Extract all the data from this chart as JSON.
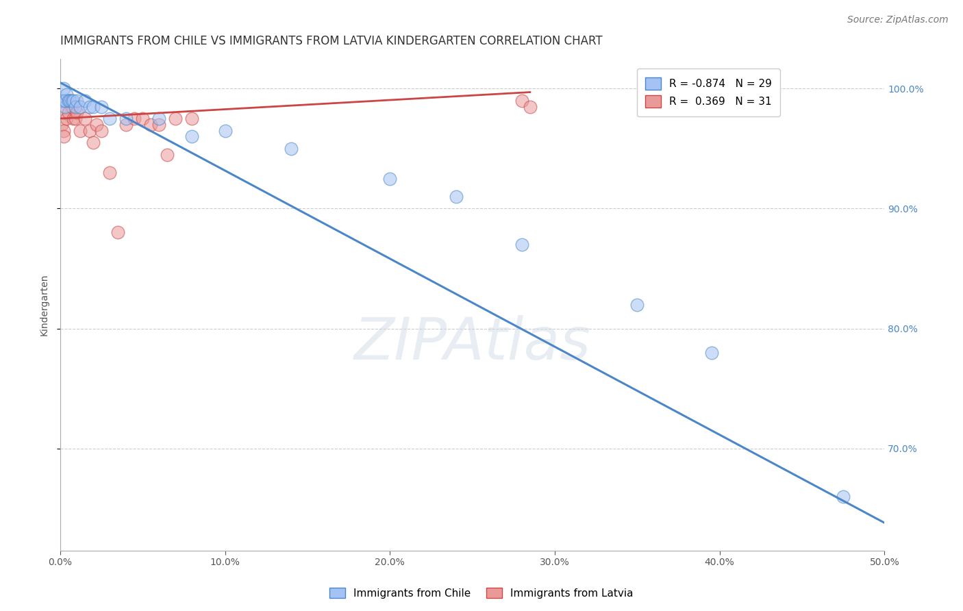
{
  "title": "IMMIGRANTS FROM CHILE VS IMMIGRANTS FROM LATVIA KINDERGARTEN CORRELATION CHART",
  "source": "Source: ZipAtlas.com",
  "ylabel": "Kindergarten",
  "xlim": [
    0.0,
    0.5
  ],
  "ylim": [
    0.615,
    1.025
  ],
  "xticks": [
    0.0,
    0.1,
    0.2,
    0.3,
    0.4,
    0.5
  ],
  "xticklabels": [
    "0.0%",
    "10.0%",
    "20.0%",
    "30.0%",
    "40.0%",
    "50.0%"
  ],
  "yticks": [
    0.7,
    0.8,
    0.9,
    1.0
  ],
  "yticklabels": [
    "70.0%",
    "80.0%",
    "90.0%",
    "100.0%"
  ],
  "grid_color": "#cccccc",
  "background_color": "#ffffff",
  "chile_color": "#a4c2f4",
  "chile_edge_color": "#4a86c8",
  "latvia_color": "#ea9999",
  "latvia_edge_color": "#cc4444",
  "chile_R": -0.874,
  "chile_N": 29,
  "latvia_R": 0.369,
  "latvia_N": 31,
  "chile_points_x": [
    0.001,
    0.002,
    0.002,
    0.003,
    0.003,
    0.004,
    0.005,
    0.006,
    0.007,
    0.008,
    0.009,
    0.01,
    0.012,
    0.015,
    0.018,
    0.02,
    0.025,
    0.03,
    0.04,
    0.06,
    0.08,
    0.1,
    0.14,
    0.2,
    0.24,
    0.28,
    0.35,
    0.395,
    0.475
  ],
  "chile_points_y": [
    0.99,
    1.0,
    0.99,
    0.985,
    0.99,
    0.995,
    0.99,
    0.99,
    0.99,
    0.99,
    0.985,
    0.99,
    0.985,
    0.99,
    0.985,
    0.985,
    0.985,
    0.975,
    0.975,
    0.975,
    0.96,
    0.965,
    0.95,
    0.925,
    0.91,
    0.87,
    0.82,
    0.78,
    0.66
  ],
  "latvia_points_x": [
    0.001,
    0.002,
    0.002,
    0.003,
    0.003,
    0.004,
    0.005,
    0.005,
    0.006,
    0.007,
    0.008,
    0.009,
    0.01,
    0.012,
    0.015,
    0.018,
    0.02,
    0.022,
    0.025,
    0.03,
    0.035,
    0.04,
    0.045,
    0.05,
    0.055,
    0.06,
    0.065,
    0.07,
    0.08,
    0.28,
    0.285
  ],
  "latvia_points_y": [
    0.97,
    0.965,
    0.96,
    0.98,
    0.99,
    0.975,
    0.99,
    0.98,
    0.99,
    0.985,
    0.975,
    0.975,
    0.98,
    0.965,
    0.975,
    0.965,
    0.955,
    0.97,
    0.965,
    0.93,
    0.88,
    0.97,
    0.975,
    0.975,
    0.97,
    0.97,
    0.945,
    0.975,
    0.975,
    0.99,
    0.985
  ],
  "chile_line_x": [
    0.0,
    0.5
  ],
  "chile_line_y": [
    1.005,
    0.638
  ],
  "latvia_line_x": [
    0.0,
    0.285
  ],
  "latvia_line_y": [
    0.975,
    0.997
  ],
  "title_fontsize": 12,
  "axis_label_fontsize": 10,
  "tick_fontsize": 10,
  "source_fontsize": 10,
  "legend_fontsize": 11
}
